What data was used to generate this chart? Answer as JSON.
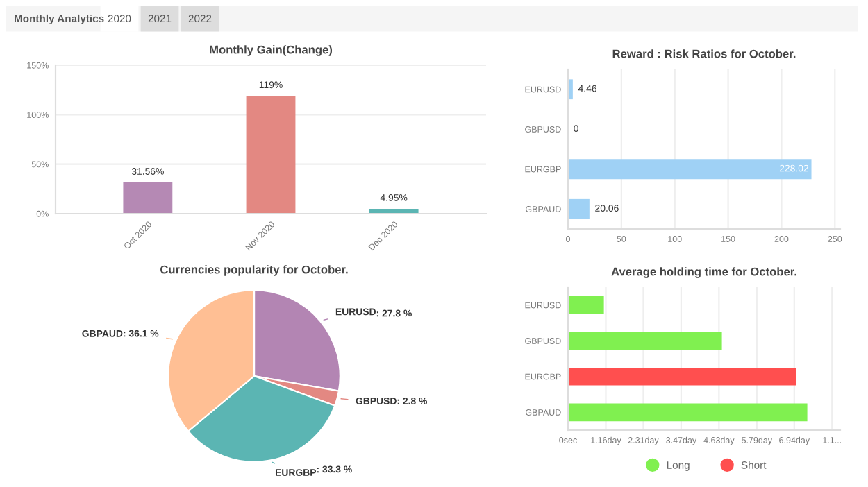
{
  "chart_data": [
    {
      "type": "bar",
      "title": "Monthly Gain(Change)",
      "annotations": [
        "Monthly Analytics",
        "2020",
        "2021",
        "2022"
      ],
      "categories": [
        "Oct 2020",
        "Nov 2020",
        "Dec 2020"
      ],
      "values": [
        31.56,
        119,
        4.95
      ],
      "colors": [
        "#b589b4",
        "#e38882",
        "#5bb5b3"
      ],
      "value_labels": [
        "31.56%",
        "119%",
        "4.95%"
      ],
      "ylim": [
        0,
        150
      ],
      "yticks": [
        {
          "value": 0,
          "label": "0%"
        },
        {
          "value": 50,
          "label": "50%"
        },
        {
          "value": 100,
          "label": "100%"
        },
        {
          "value": 150,
          "label": "150%"
        }
      ],
      "grid": "y"
    },
    {
      "type": "bar",
      "orientation": "horizontal",
      "title": "Reward : Risk Ratios for October.",
      "categories": [
        "EURUSD",
        "GBPUSD",
        "EURGBP",
        "GBPAUD"
      ],
      "values": [
        4.46,
        0,
        228.02,
        20.06
      ],
      "color": "#9fd1f5",
      "data_labels": true,
      "xlim": [
        0,
        255
      ],
      "xticks": [
        0,
        50,
        100,
        150,
        200,
        250
      ],
      "grid": "x"
    },
    {
      "type": "pie",
      "title": "Currencies popularity for October.",
      "categories": [
        "EURUSD",
        "GBPUSD",
        "EURGBP",
        "GBPAUD"
      ],
      "values": [
        27.8,
        2.8,
        33.3,
        36.1
      ],
      "colors": [
        "#b385b3",
        "#e38882",
        "#5bb5b3",
        "#ffbf94"
      ],
      "value_labels": [
        ": 27.8 %",
        ": 2.8 %",
        ": 33.3 %",
        ": 36.1 %"
      ]
    },
    {
      "type": "bar",
      "orientation": "horizontal",
      "title": "Average holding time for October.",
      "categories": [
        "EURUSD",
        "GBPUSD",
        "EURGBP",
        "GBPAUD"
      ],
      "series": [
        {
          "name": "Long",
          "color": "#80f050",
          "values": [
            1.1,
            4.72,
            null,
            7.34
          ]
        },
        {
          "name": "Short",
          "color": "#ff4f4f",
          "values": [
            null,
            null,
            7.0,
            null
          ]
        }
      ],
      "xlim": [
        0,
        8.35
      ],
      "xticks": [
        {
          "value": 0,
          "label": "0sec"
        },
        {
          "value": 1.16,
          "label": "1.16day"
        },
        {
          "value": 2.31,
          "label": "2.31day"
        },
        {
          "value": 3.47,
          "label": "3.47day"
        },
        {
          "value": 4.63,
          "label": "4.63day"
        },
        {
          "value": 5.79,
          "label": "5.79day"
        },
        {
          "value": 6.94,
          "label": "6.94day"
        },
        {
          "value": 8.1,
          "label": "1.1..."
        }
      ],
      "grid": "x",
      "legend": "bottom"
    }
  ]
}
